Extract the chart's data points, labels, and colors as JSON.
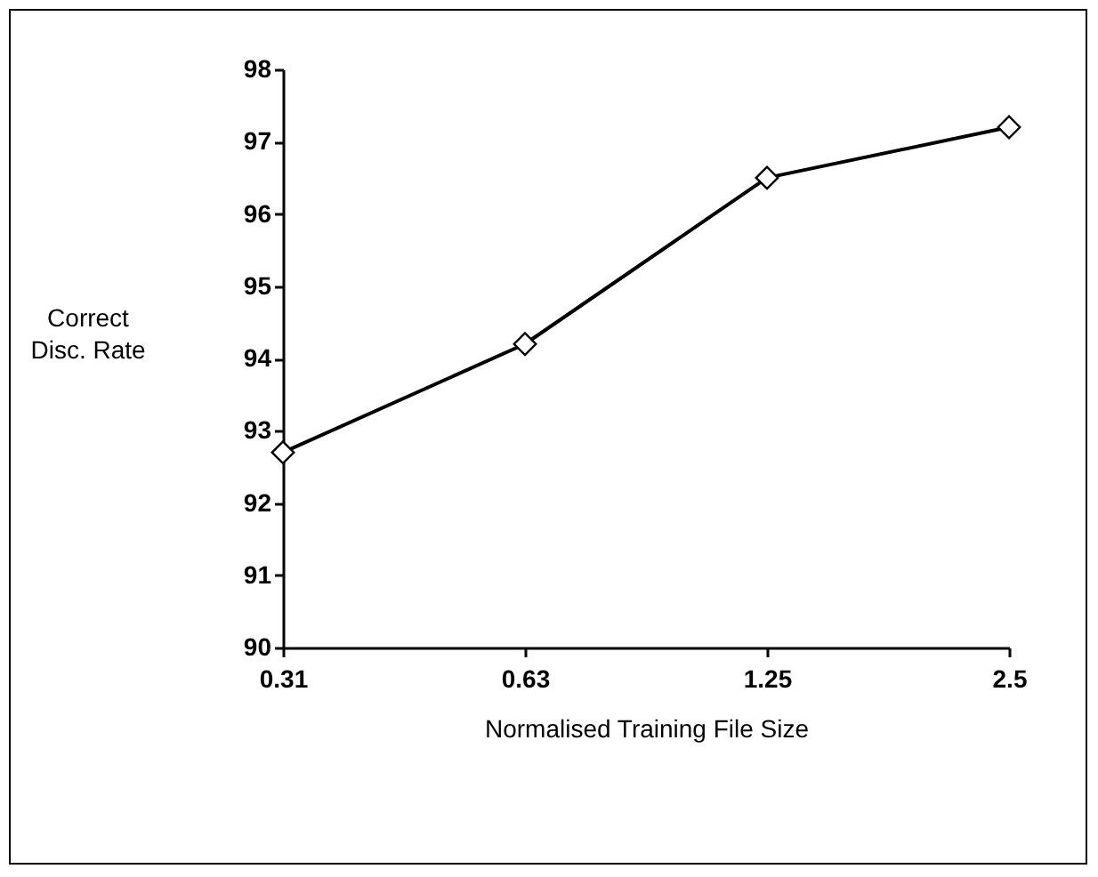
{
  "chart_data": {
    "type": "line",
    "xlabel": "Normalised Training File Size",
    "ylabel": "Correct\nDisc. Rate",
    "categories": [
      "0.31",
      "0.63",
      "1.25",
      "2.5"
    ],
    "series": [
      {
        "color": "#000000",
        "values": [
          92.7,
          94.2,
          96.5,
          97.2
        ]
      }
    ],
    "ylim": [
      90,
      98
    ],
    "yticks": [
      90,
      91,
      92,
      93,
      94,
      95,
      96,
      97,
      98
    ],
    "grid": false,
    "legend": false,
    "marker": "diamond",
    "line_style": "solid"
  }
}
